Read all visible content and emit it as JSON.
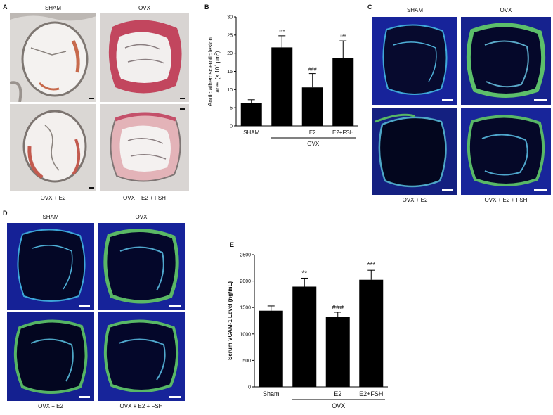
{
  "panels": {
    "A": {
      "letter": "A",
      "labels": [
        "SHAM",
        "OVX",
        "OVX + E2",
        "OVX + E2 + FSH"
      ]
    },
    "B": {
      "letter": "B",
      "group_label": "OVX"
    },
    "C": {
      "letter": "C",
      "labels": [
        "SHAM",
        "OVX",
        "OVX + E2",
        "OVX + E2 + FSH"
      ]
    },
    "D": {
      "letter": "D",
      "labels": [
        "SHAM",
        "OVX",
        "OVX + E2",
        "OVX + E2 + FSH"
      ]
    },
    "E": {
      "letter": "E",
      "group_label": "OVX"
    }
  },
  "chart_data": [
    {
      "type": "bar",
      "panel": "B",
      "categories": [
        "SHAM",
        "",
        "E2",
        "E2+FSH"
      ],
      "values": [
        6.2,
        21.6,
        10.6,
        18.6
      ],
      "errors": [
        1.0,
        3.2,
        3.8,
        4.8
      ],
      "annotations": [
        "",
        "***",
        "###",
        "***"
      ],
      "ylabel_line1": "Aortic atherosclerotic lesion",
      "ylabel_line2": "area (× 10",
      "ylabel_sup1": "4",
      "ylabel_mid": " μm",
      "ylabel_sup2": "2",
      "ylabel_end": ")",
      "ylim": [
        0,
        30
      ],
      "yticks": [
        "0",
        "5",
        "10",
        "15",
        "20",
        "25",
        "30"
      ],
      "bar_color": "#000000"
    },
    {
      "type": "bar",
      "panel": "E",
      "categories": [
        "Sham",
        "",
        "E2",
        "E2+FSH"
      ],
      "values": [
        1440,
        1895,
        1320,
        2025
      ],
      "errors": [
        90,
        160,
        90,
        180
      ],
      "annotations": [
        "",
        "**",
        "###",
        "***"
      ],
      "ylabel": "Serum VCAM-1 Level (ng/mL)",
      "ylim": [
        0,
        2500
      ],
      "yticks": [
        "0",
        "500",
        "1000",
        "1500",
        "2000",
        "2500"
      ],
      "bar_color": "#000000"
    }
  ]
}
